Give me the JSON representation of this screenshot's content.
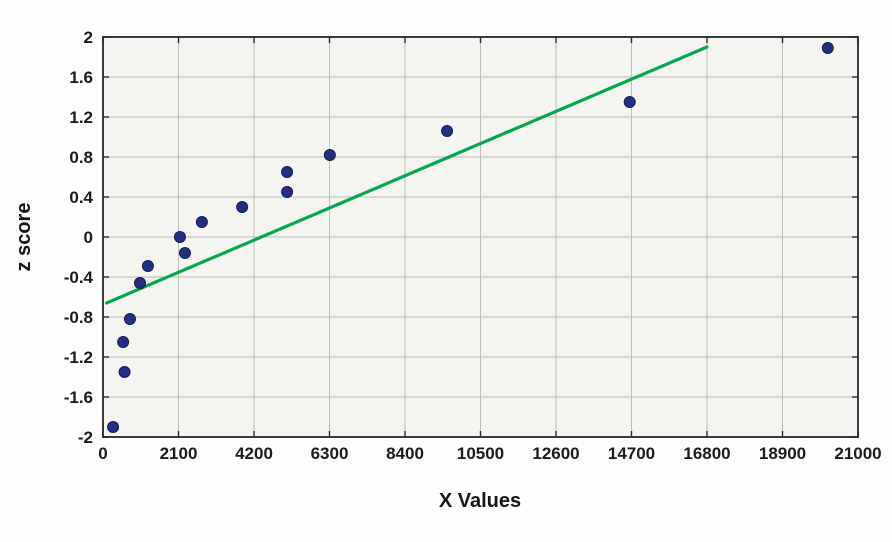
{
  "figure": {
    "background": "#fdfdfc"
  },
  "chart_data": {
    "type": "scatter",
    "title": "",
    "xlabel": "X Values",
    "ylabel": "z score",
    "xlim": [
      0,
      21000
    ],
    "ylim": [
      -2,
      2
    ],
    "x_ticks": [
      0,
      2100,
      4200,
      6300,
      8400,
      10500,
      12600,
      14700,
      16800,
      18900,
      21000
    ],
    "y_ticks": [
      -2,
      -1.6,
      -1.2,
      -0.8,
      -0.4,
      0,
      0.4,
      0.8,
      1.2,
      1.6,
      2
    ],
    "grid": true,
    "legend": false,
    "colors": {
      "plot_face": "#f5f4f0",
      "grid": "#bdbdbd",
      "axis": "#262626",
      "text": "#1b1b1b",
      "point": "#23307f",
      "point_edge": "#141c50",
      "line": "#00a64f"
    },
    "series": [
      {
        "name": "normal-fit-line",
        "type": "line",
        "color": "#00a64f",
        "points": [
          [
            100,
            -0.66
          ],
          [
            16800,
            1.9
          ]
        ]
      },
      {
        "name": "data-points",
        "type": "scatter",
        "color": "#23307f",
        "edge": "#141c50",
        "points": [
          [
            280,
            -1.9
          ],
          [
            600,
            -1.35
          ],
          [
            560,
            -1.05
          ],
          [
            750,
            -0.82
          ],
          [
            1030,
            -0.46
          ],
          [
            1250,
            -0.29
          ],
          [
            2140,
            0.0
          ],
          [
            2280,
            -0.16
          ],
          [
            2750,
            0.15
          ],
          [
            3870,
            0.3
          ],
          [
            5120,
            0.45
          ],
          [
            5120,
            0.65
          ],
          [
            6310,
            0.82
          ],
          [
            9570,
            1.06
          ],
          [
            14650,
            1.35
          ],
          [
            20160,
            1.89
          ]
        ]
      }
    ]
  }
}
